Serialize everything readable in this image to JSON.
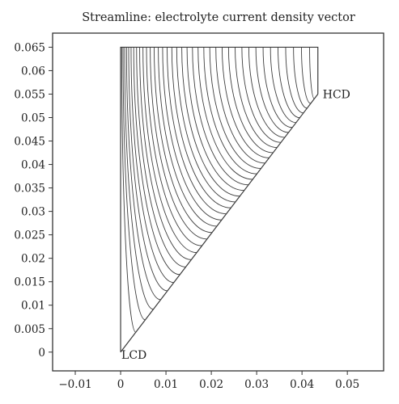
{
  "chart_data": {
    "type": "line",
    "title": "Streamline: electrolyte current density vector",
    "xlim": [
      -0.015,
      0.058
    ],
    "ylim": [
      -0.004,
      0.068
    ],
    "x_ticks": [
      -0.01,
      0,
      0.01,
      0.02,
      0.03,
      0.04,
      0.05
    ],
    "x_tick_labels": [
      "−0.01",
      "0",
      "0.01",
      "0.02",
      "0.03",
      "0.04",
      "0.05"
    ],
    "y_ticks": [
      0,
      0.005,
      0.01,
      0.015,
      0.02,
      0.025,
      0.03,
      0.035,
      0.04,
      0.045,
      0.05,
      0.055,
      0.06,
      0.065
    ],
    "y_tick_labels": [
      "0",
      "0.005",
      "0.01",
      "0.015",
      "0.02",
      "0.025",
      "0.03",
      "0.035",
      "0.04",
      "0.045",
      "0.05",
      "0.055",
      "0.06",
      "0.065"
    ],
    "domain": {
      "vertices": [
        [
          0,
          0
        ],
        [
          0,
          0.065
        ],
        [
          0.0435,
          0.065
        ],
        [
          0.0435,
          0.055
        ]
      ],
      "hypotenuse": [
        [
          0,
          0
        ],
        [
          0.0435,
          0.055
        ]
      ]
    },
    "streamlines": {
      "count": 38,
      "start_side": "hypotenuse",
      "end_side": "top edge y=0.065",
      "converge_point": [
        0.0435,
        0.055
      ],
      "pattern": "quarter-ellipse arcs from hypotenuse turning up to top edge, densest near HCD"
    },
    "annotations": [
      {
        "text": "HCD",
        "x": 0.0435,
        "y": 0.055
      },
      {
        "text": "LCD",
        "x": 0.0,
        "y": 0.0
      }
    ],
    "grid": false,
    "legend": "none"
  }
}
